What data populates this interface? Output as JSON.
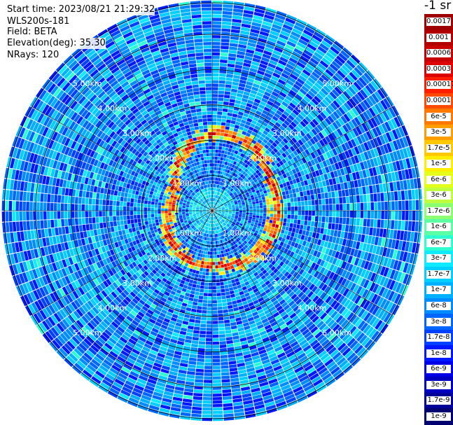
{
  "info": {
    "start_time": "Start time: 2023/08/21 21:29:32",
    "instrument": "WLS200s-181",
    "field": "Field: BETA",
    "elevation": "Elevation(deg): 35.30",
    "nrays": "NRays: 120"
  },
  "colorbar": {
    "title": "-1 sr",
    "ticks": [
      "0.0017",
      "0.001",
      "0.0006",
      "0.0003",
      "0.00017",
      "0.0001",
      "6e-5",
      "3e-5",
      "1.7e-5",
      "1e-5",
      "6e-6",
      "3e-6",
      "1.7e-6",
      "1e-6",
      "6e-7",
      "3e-7",
      "1.7e-7",
      "1e-7",
      "6e-8",
      "3e-8",
      "1.7e-8",
      "1e-8",
      "6e-9",
      "3e-9",
      "1.7e-9",
      "1e-9"
    ],
    "colors": [
      "#9e0000",
      "#b00000",
      "#c80000",
      "#dc0000",
      "#ff1e00",
      "#ff4a00",
      "#ff7800",
      "#ff9c00",
      "#ffc800",
      "#ffee00",
      "#e6ff1a",
      "#bfff40",
      "#8cff73",
      "#5cffa3",
      "#2effd1",
      "#10eaff",
      "#00cfff",
      "#00b0ff",
      "#008cff",
      "#0066ff",
      "#0040ff",
      "#0018ff",
      "#0000e6",
      "#0000c0",
      "#000099",
      "#000070"
    ]
  },
  "range_labels": [
    "1.00km",
    "2.00km",
    "3.00km",
    "4.00km",
    "5.00km"
  ],
  "chart_data": {
    "type": "heatmap",
    "projection": "polar",
    "field": "BETA",
    "units": "sr-1",
    "elevation_deg": 35.3,
    "n_rays": 120,
    "range_rings_km": [
      1,
      2,
      3,
      4,
      5
    ],
    "aerosol_layer": {
      "range_km_min": 1.1,
      "range_km_max": 2.4,
      "beta_peak": 0.0003
    },
    "background_beta_range": [
      1e-08,
      1e-07
    ],
    "clim": [
      1e-09,
      0.0017
    ]
  }
}
